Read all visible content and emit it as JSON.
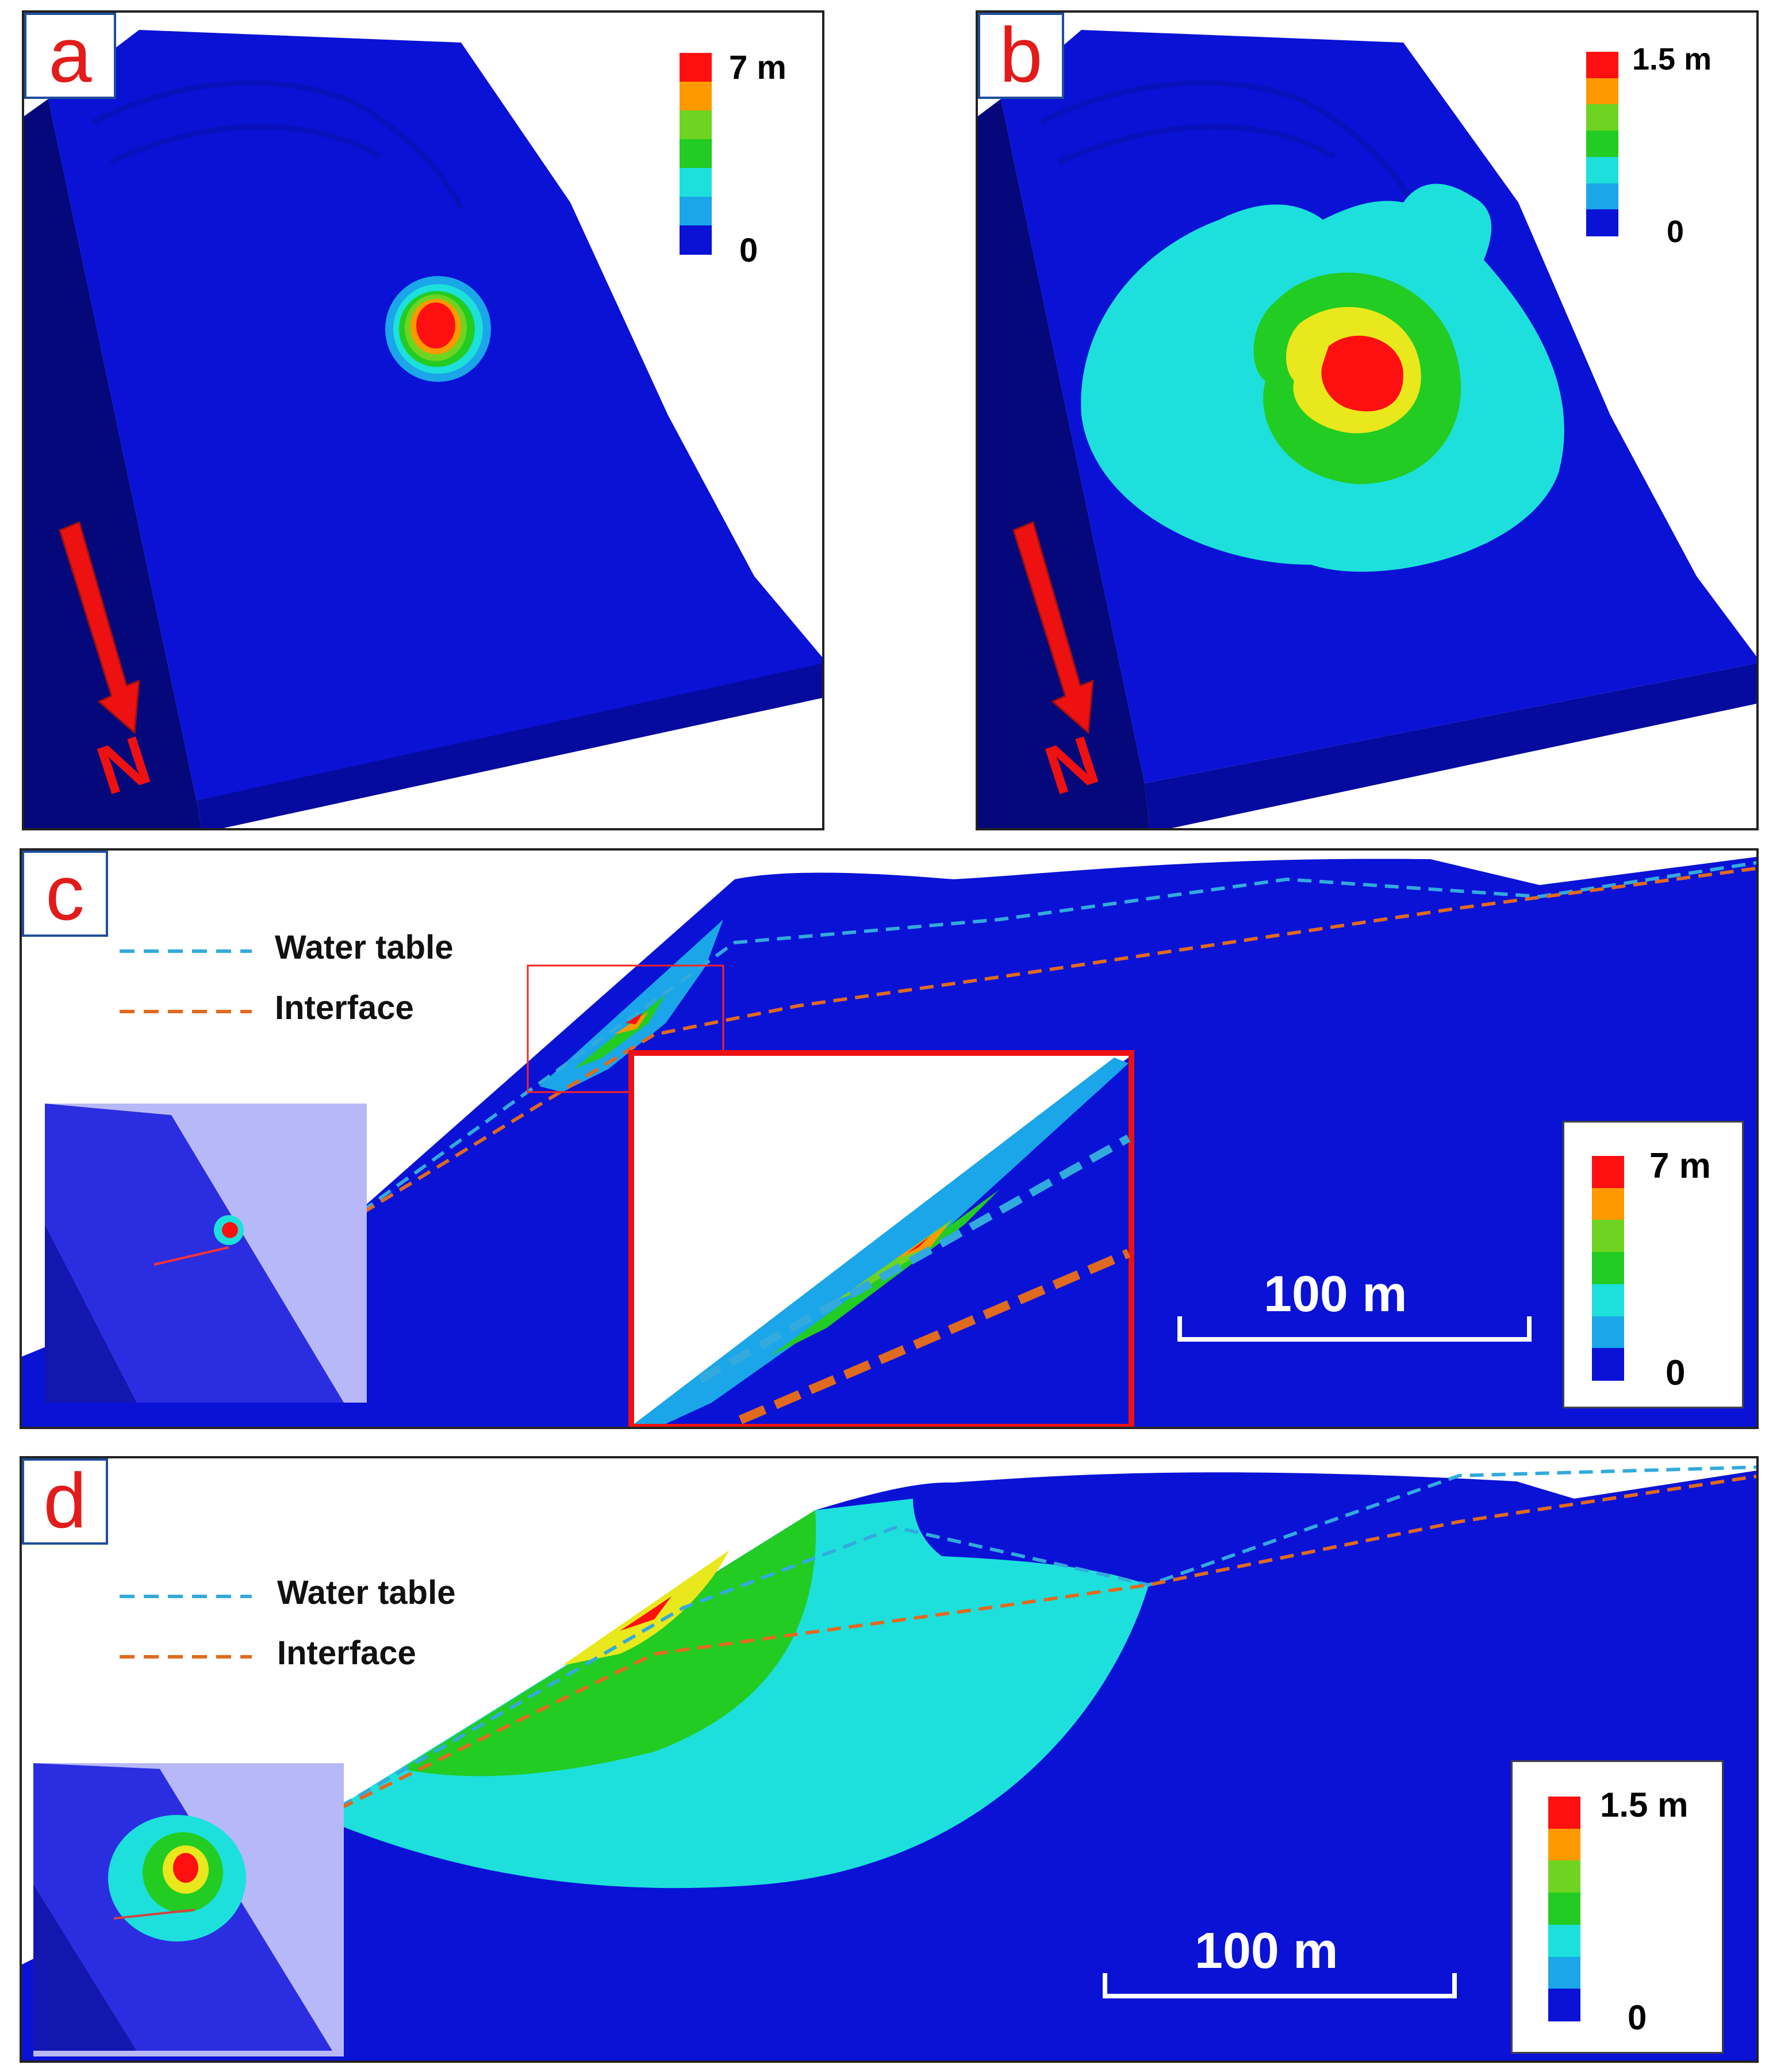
{
  "panels": {
    "a": {
      "label": "a",
      "legend": {
        "max": "7 m",
        "min": "0"
      },
      "north": "N"
    },
    "b": {
      "label": "b",
      "legend": {
        "max": "1.5 m",
        "min": "0"
      },
      "north": "N"
    },
    "c": {
      "label": "c",
      "water_table": "Water table",
      "interface": "Interface",
      "legend": {
        "max": "7 m",
        "min": "0"
      },
      "scale": "100 m"
    },
    "d": {
      "label": "d",
      "water_table": "Water table",
      "interface": "Interface",
      "legend": {
        "max": "1.5 m",
        "min": "0"
      },
      "scale": "100 m"
    }
  },
  "colors": {
    "background_blue": "#0a12d6",
    "light_blue": "#1aa6e8",
    "cyan": "#1de0dc",
    "green": "#22cc22",
    "light_green": "#6ed421",
    "yellow": "#e8e81c",
    "orange": "#ff9900",
    "red": "#ff1010",
    "water_table_line": "#33aadd",
    "interface_line": "#e06a20",
    "label_red": "#e21b1b",
    "north_arrow": "#ee1111"
  },
  "legend_colors": [
    "#ff1010",
    "#ff9900",
    "#6ed421",
    "#22cc22",
    "#1de0dc",
    "#1aa6e8",
    "#0a12d6"
  ]
}
